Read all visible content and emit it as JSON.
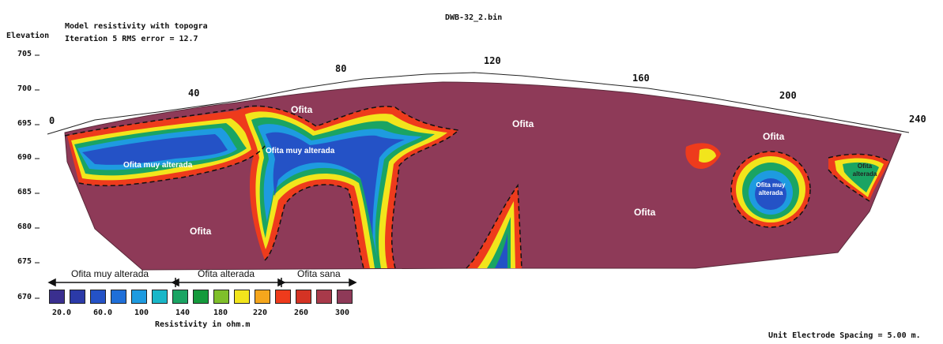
{
  "header": {
    "file_name": "DWB-32_2.bin",
    "line1": "Model resistivity with topogra",
    "line2": "Iteration 5 RMS error = 12.7",
    "elevation_label": "Elevation"
  },
  "axes": {
    "elevation_ticks": [
      "705",
      "700",
      "695",
      "690",
      "685",
      "680",
      "675",
      "670"
    ],
    "distance_ticks": [
      "0",
      "40",
      "80",
      "120",
      "160",
      "200",
      "240"
    ]
  },
  "zone_labels": {
    "ofita_top_left": "Ofita",
    "ofita_top_center": "Ofita",
    "ofita_top_right": "Ofita",
    "ofita_muy_alterada_left": "Ofita muy alterada",
    "ofita_muy_alterada_center": "Ofita muy alterada",
    "ofita_bottom_left": "Ofita",
    "ofita_bottom_center": "Ofita",
    "ofita_muy_alterada_right": "Ofita muy alterada",
    "ofita_alterada_right": "Ofita alterada"
  },
  "legend": {
    "category_1": "Ofita muy alterada",
    "category_2": "Ofita alterada",
    "category_3": "Ofita sana",
    "swatch_colors": [
      "#3a2f8f",
      "#2b3aa8",
      "#2452c6",
      "#1f6fd8",
      "#1e9be0",
      "#19b7c8",
      "#1aa463",
      "#149a3c",
      "#7fbf2a",
      "#f2e51c",
      "#f5a61c",
      "#ee3b1c",
      "#d43324",
      "#a83a4a",
      "#8e3a58"
    ],
    "value_labels": [
      "20.0",
      "60.0",
      "100",
      "140",
      "180",
      "220",
      "260",
      "300"
    ],
    "caption": "Resistivity in ohm.m"
  },
  "footer": {
    "electrode_spacing": "Unit Electrode Spacing = 5.00 m."
  }
}
